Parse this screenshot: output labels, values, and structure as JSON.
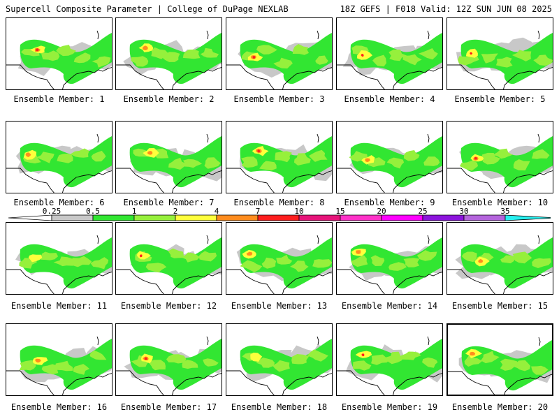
{
  "header": {
    "left": "Supercell Composite Parameter | College of DuPage NEXLAB",
    "right": "18Z GEFS | F018 Valid: 12Z SUN JUN 08 2025"
  },
  "legend": {
    "ticks": [
      "0.25",
      "0.5",
      "1",
      "2",
      "4",
      "7",
      "10",
      "15",
      "20",
      "25",
      "30",
      "35"
    ],
    "colors": [
      "#c8c8c8",
      "#32e632",
      "#96f03c",
      "#ffff3c",
      "#ff8c1e",
      "#ff1e1e",
      "#e6147a",
      "#ff32c8",
      "#ff00ff",
      "#8c14dc",
      "#b464dc",
      "#28f0f0"
    ]
  },
  "members": [
    {
      "label": "Ensemble Member: 1"
    },
    {
      "label": "Ensemble Member: 2"
    },
    {
      "label": "Ensemble Member: 3"
    },
    {
      "label": "Ensemble Member: 4"
    },
    {
      "label": "Ensemble Member: 5"
    },
    {
      "label": "Ensemble Member: 6"
    },
    {
      "label": "Ensemble Member: 7"
    },
    {
      "label": "Ensemble Member: 8"
    },
    {
      "label": "Ensemble Member: 9"
    },
    {
      "label": "Ensemble Member: 10"
    },
    {
      "label": "Ensemble Member: 11"
    },
    {
      "label": "Ensemble Member: 12"
    },
    {
      "label": "Ensemble Member: 13"
    },
    {
      "label": "Ensemble Member: 14"
    },
    {
      "label": "Ensemble Member: 15"
    },
    {
      "label": "Ensemble Member: 16"
    },
    {
      "label": "Ensemble Member: 17"
    },
    {
      "label": "Ensemble Member: 18"
    },
    {
      "label": "Ensemble Member: 19"
    },
    {
      "label": "Ensemble Member: 20",
      "selected": true
    }
  ]
}
